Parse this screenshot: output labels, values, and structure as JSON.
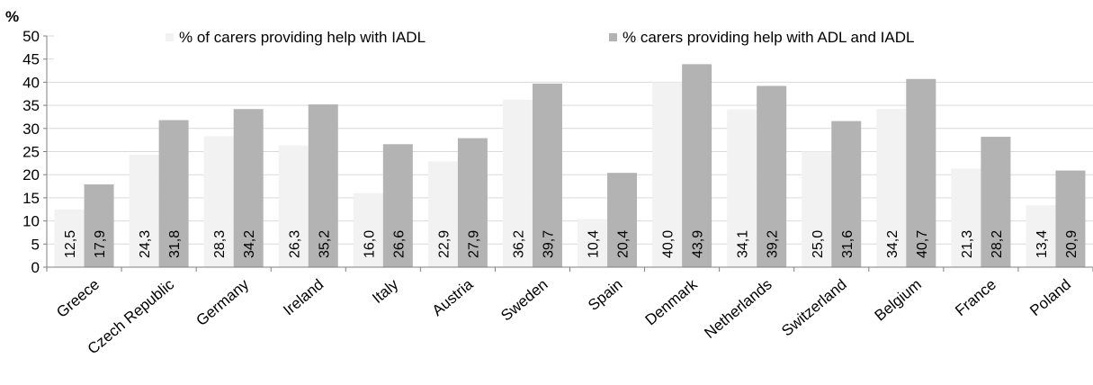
{
  "chart_data": {
    "type": "bar",
    "title": "",
    "ylabel": "%",
    "xlabel": "",
    "ylim": [
      0,
      50
    ],
    "yticks": [
      0,
      5,
      10,
      15,
      20,
      25,
      30,
      35,
      40,
      45,
      50
    ],
    "grid": "horizontal",
    "legend": "top",
    "categories": [
      "Greece",
      "Czech Republic",
      "Germany",
      "Ireland",
      "Italy",
      "Austria",
      "Sweden",
      "Spain",
      "Denmark",
      "Netherlands",
      "Switzerland",
      "Belgium",
      "France",
      "Poland"
    ],
    "series": [
      {
        "name": "% of carers providing help with IADL",
        "color": "#f2f2f2",
        "values": [
          12.5,
          24.3,
          28.3,
          26.3,
          16.0,
          22.9,
          36.2,
          10.4,
          40.0,
          34.1,
          25.0,
          34.2,
          21.3,
          13.4
        ],
        "labels": [
          "12,5",
          "24,3",
          "28,3",
          "26,3",
          "16,0",
          "22,9",
          "36,2",
          "10,4",
          "40,0",
          "34,1",
          "25,0",
          "34,2",
          "21,3",
          "13,4"
        ]
      },
      {
        "name": "% carers providing help with ADL and IADL",
        "color": "#b3b3b3",
        "values": [
          17.9,
          31.8,
          34.2,
          35.2,
          26.6,
          27.9,
          39.7,
          20.4,
          43.9,
          39.2,
          31.6,
          40.7,
          28.2,
          20.9
        ],
        "labels": [
          "17,9",
          "31,8",
          "34,2",
          "35,2",
          "26,6",
          "27,9",
          "39,7",
          "20,4",
          "43,9",
          "39,2",
          "31,6",
          "40,7",
          "28,2",
          "20,9"
        ]
      }
    ]
  }
}
